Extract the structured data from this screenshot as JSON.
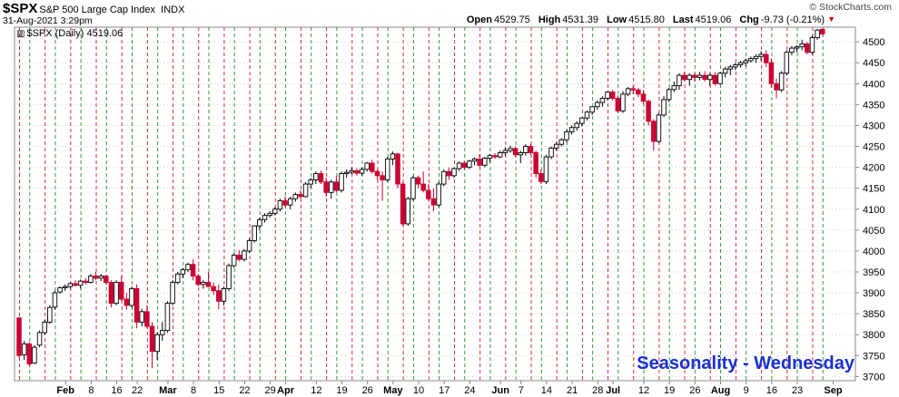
{
  "header": {
    "symbol": "$SPX",
    "name": "S&P 500 Large Cap Index",
    "exchange": "INDX",
    "date_time": "31-Aug-2021 3:29pm",
    "open_label": "Open",
    "open": "4529.75",
    "high_label": "High",
    "high": "4531.39",
    "low_label": "Low",
    "low": "4515.80",
    "last_label": "Last",
    "last": "4519.06",
    "chg_label": "Chg",
    "chg": "-9.73 (-0.21%)",
    "brand": "© StockCharts.com"
  },
  "legend": {
    "icon": "candlestick-icon",
    "text": "$SPX (Daily) 4519.06"
  },
  "annotation": "Seasonality - Wednesday",
  "colors": {
    "up": "#000000",
    "down": "#cc0033",
    "wednesday_line": "#cc3333",
    "friday_line": "#339933",
    "annotation": "#1a2fd6"
  },
  "chart_data": {
    "type": "candlestick",
    "title": "$SPX (Daily) 4519.06",
    "ylim": [
      3690,
      4535
    ],
    "y_ticks": [
      3700,
      3750,
      3800,
      3850,
      3900,
      3950,
      4000,
      4050,
      4100,
      4150,
      4200,
      4250,
      4300,
      4350,
      4400,
      4450,
      4500
    ],
    "x_ticks": [
      {
        "label": "Feb",
        "idx": 9,
        "bold": true
      },
      {
        "label": "8",
        "idx": 14,
        "bold": false
      },
      {
        "label": "16",
        "idx": 19,
        "bold": false
      },
      {
        "label": "22",
        "idx": 23,
        "bold": false
      },
      {
        "label": "Mar",
        "idx": 29,
        "bold": true
      },
      {
        "label": "8",
        "idx": 34,
        "bold": false
      },
      {
        "label": "15",
        "idx": 39,
        "bold": false
      },
      {
        "label": "22",
        "idx": 44,
        "bold": false
      },
      {
        "label": "29",
        "idx": 49,
        "bold": false
      },
      {
        "label": "Apr",
        "idx": 52,
        "bold": true
      },
      {
        "label": "12",
        "idx": 58,
        "bold": false
      },
      {
        "label": "19",
        "idx": 63,
        "bold": false
      },
      {
        "label": "26",
        "idx": 68,
        "bold": false
      },
      {
        "label": "May",
        "idx": 73,
        "bold": true
      },
      {
        "label": "10",
        "idx": 78,
        "bold": false
      },
      {
        "label": "17",
        "idx": 83,
        "bold": false
      },
      {
        "label": "24",
        "idx": 88,
        "bold": false
      },
      {
        "label": "Jun",
        "idx": 94,
        "bold": true
      },
      {
        "label": "7",
        "idx": 98,
        "bold": false
      },
      {
        "label": "14",
        "idx": 103,
        "bold": false
      },
      {
        "label": "21",
        "idx": 108,
        "bold": false
      },
      {
        "label": "28",
        "idx": 113,
        "bold": false
      },
      {
        "label": "Jul",
        "idx": 116,
        "bold": true
      },
      {
        "label": "12",
        "idx": 122,
        "bold": false
      },
      {
        "label": "19",
        "idx": 127,
        "bold": false
      },
      {
        "label": "26",
        "idx": 132,
        "bold": false
      },
      {
        "label": "Aug",
        "idx": 137,
        "bold": true
      },
      {
        "label": "9",
        "idx": 142,
        "bold": false
      },
      {
        "label": "16",
        "idx": 147,
        "bold": false
      },
      {
        "label": "23",
        "idx": 152,
        "bold": false
      },
      {
        "label": "Sep",
        "idx": 159,
        "bold": true
      }
    ],
    "wednesday_idx": [
      0,
      5,
      10,
      15,
      20,
      25,
      30,
      35,
      40,
      45,
      50,
      55,
      60,
      65,
      70,
      75,
      80,
      85,
      90,
      95,
      100,
      105,
      110,
      115,
      120,
      125,
      130,
      135,
      140,
      145,
      150,
      155
    ],
    "friday_idx": [
      2,
      7,
      12,
      17,
      22,
      27,
      32,
      37,
      42,
      47,
      52,
      57,
      62,
      67,
      72,
      77,
      82,
      87,
      92,
      97,
      102,
      107,
      112,
      117,
      122,
      127,
      132,
      137,
      142,
      147,
      152,
      157
    ],
    "x_slots": 160,
    "ohlc": [
      [
        3840,
        3842,
        3745,
        3750
      ],
      [
        3752,
        3785,
        3740,
        3778
      ],
      [
        3778,
        3782,
        3725,
        3730
      ],
      [
        3732,
        3775,
        3730,
        3770
      ],
      [
        3775,
        3810,
        3770,
        3805
      ],
      [
        3805,
        3835,
        3800,
        3830
      ],
      [
        3830,
        3870,
        3826,
        3865
      ],
      [
        3866,
        3905,
        3860,
        3900
      ],
      [
        3902,
        3915,
        3898,
        3912
      ],
      [
        3912,
        3920,
        3905,
        3915
      ],
      [
        3915,
        3925,
        3910,
        3922
      ],
      [
        3922,
        3930,
        3915,
        3918
      ],
      [
        3918,
        3932,
        3910,
        3928
      ],
      [
        3928,
        3935,
        3920,
        3925
      ],
      [
        3925,
        3945,
        3922,
        3940
      ],
      [
        3940,
        3950,
        3930,
        3935
      ],
      [
        3935,
        3945,
        3928,
        3940
      ],
      [
        3940,
        3942,
        3920,
        3925
      ],
      [
        3925,
        3930,
        3865,
        3875
      ],
      [
        3875,
        3930,
        3870,
        3925
      ],
      [
        3925,
        3940,
        3880,
        3885
      ],
      [
        3885,
        3900,
        3860,
        3870
      ],
      [
        3870,
        3915,
        3865,
        3910
      ],
      [
        3910,
        3920,
        3815,
        3830
      ],
      [
        3830,
        3862,
        3820,
        3855
      ],
      [
        3855,
        3870,
        3815,
        3820
      ],
      [
        3820,
        3830,
        3720,
        3760
      ],
      [
        3760,
        3805,
        3740,
        3800
      ],
      [
        3800,
        3830,
        3785,
        3810
      ],
      [
        3810,
        3880,
        3805,
        3875
      ],
      [
        3875,
        3930,
        3870,
        3925
      ],
      [
        3925,
        3950,
        3920,
        3945
      ],
      [
        3945,
        3960,
        3935,
        3955
      ],
      [
        3955,
        3972,
        3950,
        3968
      ],
      [
        3968,
        3980,
        3930,
        3940
      ],
      [
        3940,
        3945,
        3915,
        3920
      ],
      [
        3920,
        3930,
        3910,
        3925
      ],
      [
        3925,
        3950,
        3915,
        3915
      ],
      [
        3915,
        3925,
        3895,
        3905
      ],
      [
        3905,
        3920,
        3860,
        3880
      ],
      [
        3880,
        3915,
        3870,
        3910
      ],
      [
        3910,
        3970,
        3905,
        3965
      ],
      [
        3965,
        3995,
        3960,
        3990
      ],
      [
        3990,
        4002,
        3975,
        3980
      ],
      [
        3980,
        4005,
        3975,
        4000
      ],
      [
        4000,
        4030,
        3995,
        4025
      ],
      [
        4025,
        4062,
        4020,
        4060
      ],
      [
        4060,
        4080,
        4050,
        4075
      ],
      [
        4075,
        4090,
        4068,
        4085
      ],
      [
        4085,
        4095,
        4080,
        4090
      ],
      [
        4090,
        4105,
        4085,
        4100
      ],
      [
        4100,
        4125,
        4095,
        4120
      ],
      [
        4120,
        4131,
        4105,
        4110
      ],
      [
        4110,
        4130,
        4100,
        4125
      ],
      [
        4125,
        4140,
        4118,
        4135
      ],
      [
        4135,
        4145,
        4125,
        4130
      ],
      [
        4130,
        4165,
        4128,
        4160
      ],
      [
        4160,
        4175,
        4150,
        4170
      ],
      [
        4170,
        4190,
        4160,
        4185
      ],
      [
        4185,
        4192,
        4160,
        4165
      ],
      [
        4165,
        4175,
        4130,
        4140
      ],
      [
        4140,
        4170,
        4125,
        4165
      ],
      [
        4165,
        4180,
        4140,
        4145
      ],
      [
        4145,
        4190,
        4140,
        4185
      ],
      [
        4185,
        4195,
        4175,
        4188
      ],
      [
        4188,
        4200,
        4183,
        4192
      ],
      [
        4192,
        4198,
        4180,
        4186
      ],
      [
        4186,
        4200,
        4180,
        4195
      ],
      [
        4195,
        4213,
        4190,
        4210
      ],
      [
        4210,
        4218,
        4185,
        4190
      ],
      [
        4190,
        4195,
        4170,
        4180
      ],
      [
        4180,
        4190,
        4120,
        4170
      ],
      [
        4170,
        4225,
        4165,
        4220
      ],
      [
        4220,
        4238,
        4205,
        4232
      ],
      [
        4232,
        4235,
        4150,
        4160
      ],
      [
        4160,
        4165,
        4060,
        4065
      ],
      [
        4065,
        4130,
        4060,
        4125
      ],
      [
        4125,
        4180,
        4120,
        4175
      ],
      [
        4175,
        4180,
        4150,
        4160
      ],
      [
        4160,
        4190,
        4140,
        4145
      ],
      [
        4145,
        4160,
        4120,
        4125
      ],
      [
        4125,
        4150,
        4095,
        4110
      ],
      [
        4110,
        4165,
        4105,
        4160
      ],
      [
        4160,
        4195,
        4155,
        4190
      ],
      [
        4190,
        4200,
        4170,
        4180
      ],
      [
        4180,
        4200,
        4175,
        4197
      ],
      [
        4197,
        4214,
        4192,
        4210
      ],
      [
        4210,
        4215,
        4195,
        4200
      ],
      [
        4200,
        4218,
        4196,
        4215
      ],
      [
        4215,
        4224,
        4205,
        4220
      ],
      [
        4220,
        4232,
        4200,
        4205
      ],
      [
        4205,
        4225,
        4200,
        4222
      ],
      [
        4222,
        4232,
        4212,
        4228
      ],
      [
        4228,
        4234,
        4220,
        4225
      ],
      [
        4225,
        4240,
        4222,
        4235
      ],
      [
        4235,
        4248,
        4228,
        4240
      ],
      [
        4240,
        4252,
        4235,
        4245
      ],
      [
        4245,
        4250,
        4225,
        4230
      ],
      [
        4230,
        4240,
        4210,
        4235
      ],
      [
        4235,
        4255,
        4228,
        4250
      ],
      [
        4250,
        4256,
        4230,
        4235
      ],
      [
        4235,
        4240,
        4175,
        4185
      ],
      [
        4185,
        4195,
        4160,
        4166
      ],
      [
        4166,
        4230,
        4160,
        4225
      ],
      [
        4225,
        4250,
        4220,
        4246
      ],
      [
        4246,
        4260,
        4240,
        4255
      ],
      [
        4255,
        4270,
        4250,
        4266
      ],
      [
        4266,
        4290,
        4260,
        4285
      ],
      [
        4285,
        4300,
        4278,
        4295
      ],
      [
        4295,
        4310,
        4288,
        4305
      ],
      [
        4305,
        4320,
        4298,
        4318
      ],
      [
        4318,
        4335,
        4312,
        4332
      ],
      [
        4332,
        4345,
        4325,
        4345
      ],
      [
        4345,
        4360,
        4338,
        4355
      ],
      [
        4355,
        4370,
        4345,
        4365
      ],
      [
        4365,
        4382,
        4360,
        4380
      ],
      [
        4380,
        4385,
        4360,
        4365
      ],
      [
        4365,
        4372,
        4330,
        4335
      ],
      [
        4335,
        4382,
        4330,
        4375
      ],
      [
        4375,
        4392,
        4370,
        4388
      ],
      [
        4388,
        4395,
        4375,
        4385
      ],
      [
        4385,
        4390,
        4368,
        4375
      ],
      [
        4375,
        4385,
        4350,
        4358
      ],
      [
        4358,
        4362,
        4300,
        4310
      ],
      [
        4310,
        4315,
        4240,
        4262
      ],
      [
        4262,
        4330,
        4258,
        4325
      ],
      [
        4325,
        4370,
        4320,
        4362
      ],
      [
        4362,
        4390,
        4356,
        4386
      ],
      [
        4386,
        4405,
        4380,
        4395
      ],
      [
        4395,
        4425,
        4385,
        4420
      ],
      [
        4420,
        4428,
        4405,
        4410
      ],
      [
        4410,
        4425,
        4395,
        4420
      ],
      [
        4420,
        4425,
        4405,
        4415
      ],
      [
        4415,
        4428,
        4408,
        4420
      ],
      [
        4420,
        4430,
        4405,
        4410
      ],
      [
        4410,
        4425,
        4395,
        4420
      ],
      [
        4420,
        4428,
        4395,
        4400
      ],
      [
        4400,
        4428,
        4398,
        4425
      ],
      [
        4425,
        4440,
        4415,
        4435
      ],
      [
        4435,
        4445,
        4420,
        4440
      ],
      [
        4440,
        4450,
        4432,
        4445
      ],
      [
        4445,
        4455,
        4438,
        4450
      ],
      [
        4450,
        4460,
        4442,
        4455
      ],
      [
        4455,
        4465,
        4450,
        4460
      ],
      [
        4460,
        4470,
        4450,
        4465
      ],
      [
        4465,
        4478,
        4455,
        4470
      ],
      [
        4470,
        4480,
        4440,
        4450
      ],
      [
        4450,
        4460,
        4390,
        4400
      ],
      [
        4400,
        4412,
        4365,
        4385
      ],
      [
        4385,
        4430,
        4380,
        4425
      ],
      [
        4425,
        4480,
        4420,
        4475
      ],
      [
        4475,
        4490,
        4468,
        4485
      ],
      [
        4485,
        4492,
        4475,
        4488
      ],
      [
        4488,
        4505,
        4480,
        4495
      ],
      [
        4495,
        4500,
        4470,
        4475
      ],
      [
        4475,
        4515,
        4470,
        4510
      ],
      [
        4510,
        4531,
        4505,
        4528
      ],
      [
        4530,
        4531,
        4515,
        4519
      ]
    ]
  }
}
